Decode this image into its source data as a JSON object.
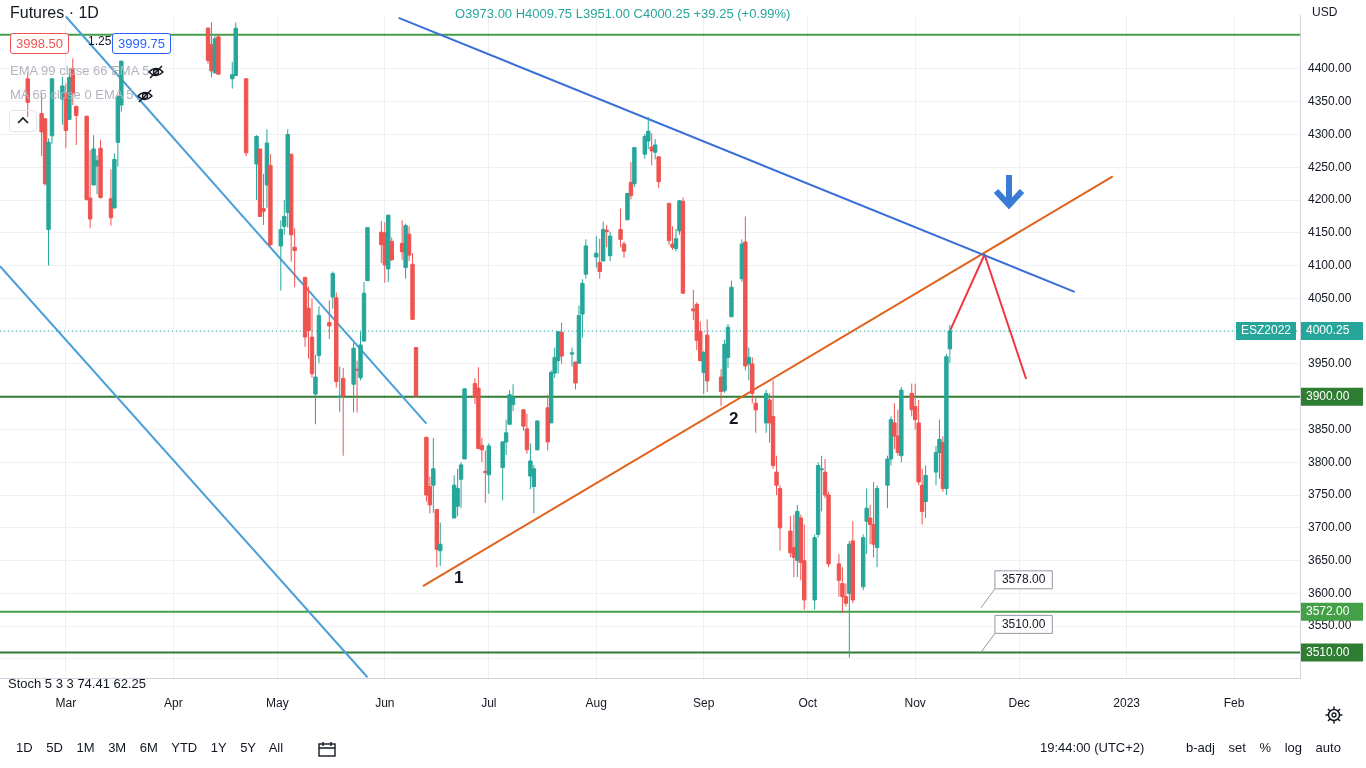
{
  "chart_data": {
    "type": "candlestick",
    "title": "Futures · 1D",
    "annotations": [
      "O3973.00 H4009.75 L3951.00 C4000.25 +39.25 (+0.99%)",
      "3998.50",
      "1.25",
      "3999.75",
      "EMA 99 close 66 EMA 5",
      "MA 65 close 0 EMA 5",
      "Stoch 5 3 3 74.41 62.25",
      "USD",
      "1D 5D 1M 3M 6M YTD 1Y 5Y All",
      "19:44:00 (UTC+2)",
      "b-adj set % log auto",
      "1",
      "2",
      {
        "text": "3578.00",
        "x": "2022-11-24",
        "y": 3578
      },
      {
        "text": "3510.00",
        "x": "2022-11-24",
        "y": 3510
      },
      {
        "text": "ESZ2022",
        "y": 4000.25
      }
    ],
    "x": [
      "2022-02-18",
      "2022-02-22",
      "2022-02-23",
      "2022-02-24",
      "2022-02-25",
      "2022-02-28",
      "2022-03-01",
      "2022-03-02",
      "2022-03-03",
      "2022-03-04",
      "2022-03-07",
      "2022-03-08",
      "2022-03-09",
      "2022-03-10",
      "2022-03-11",
      "2022-03-14",
      "2022-03-15",
      "2022-03-16",
      "2022-03-17",
      "2022-04-11",
      "2022-04-12",
      "2022-04-13",
      "2022-04-14",
      "2022-04-18",
      "2022-04-19",
      "2022-04-22",
      "2022-04-25",
      "2022-04-26",
      "2022-04-27",
      "2022-04-28",
      "2022-04-29",
      "2022-05-02",
      "2022-05-03",
      "2022-05-04",
      "2022-05-05",
      "2022-05-06",
      "2022-05-09",
      "2022-05-10",
      "2022-05-11",
      "2022-05-12",
      "2022-05-13",
      "2022-05-16",
      "2022-05-17",
      "2022-05-18",
      "2022-05-19",
      "2022-05-20",
      "2022-05-23",
      "2022-05-24",
      "2022-05-25",
      "2022-05-26",
      "2022-05-27",
      "2022-05-31",
      "2022-06-01",
      "2022-06-02",
      "2022-06-03",
      "2022-06-06",
      "2022-06-07",
      "2022-06-08",
      "2022-06-09",
      "2022-06-10",
      "2022-06-13",
      "2022-06-14",
      "2022-06-15",
      "2022-06-16",
      "2022-06-17",
      "2022-06-21",
      "2022-06-22",
      "2022-06-23",
      "2022-06-24",
      "2022-06-27",
      "2022-06-28",
      "2022-06-29",
      "2022-06-30",
      "2022-07-01",
      "2022-07-05",
      "2022-07-06",
      "2022-07-07",
      "2022-07-08",
      "2022-07-11",
      "2022-07-12",
      "2022-07-13",
      "2022-07-14",
      "2022-07-15",
      "2022-07-18",
      "2022-07-19",
      "2022-07-20",
      "2022-07-21",
      "2022-07-22",
      "2022-07-25",
      "2022-07-26",
      "2022-07-27",
      "2022-07-28",
      "2022-07-29",
      "2022-08-01",
      "2022-08-02",
      "2022-08-03",
      "2022-08-04",
      "2022-08-05",
      "2022-08-08",
      "2022-08-09",
      "2022-08-10",
      "2022-08-11",
      "2022-08-12",
      "2022-08-15",
      "2022-08-16",
      "2022-08-17",
      "2022-08-18",
      "2022-08-19",
      "2022-08-22",
      "2022-08-23",
      "2022-08-24",
      "2022-08-25",
      "2022-08-26",
      "2022-08-29",
      "2022-08-30",
      "2022-08-31",
      "2022-09-01",
      "2022-09-02",
      "2022-09-06",
      "2022-09-07",
      "2022-09-08",
      "2022-09-09",
      "2022-09-12",
      "2022-09-13",
      "2022-09-14",
      "2022-09-15",
      "2022-09-16",
      "2022-09-19",
      "2022-09-20",
      "2022-09-21",
      "2022-09-22",
      "2022-09-23",
      "2022-09-26",
      "2022-09-27",
      "2022-09-28",
      "2022-09-29",
      "2022-09-30",
      "2022-10-03",
      "2022-10-04",
      "2022-10-05",
      "2022-10-06",
      "2022-10-07",
      "2022-10-10",
      "2022-10-11",
      "2022-10-12",
      "2022-10-13",
      "2022-10-14",
      "2022-10-17",
      "2022-10-18",
      "2022-10-19",
      "2022-10-20",
      "2022-10-21",
      "2022-10-24",
      "2022-10-25",
      "2022-10-26",
      "2022-10-27",
      "2022-10-28",
      "2022-10-31",
      "2022-11-01",
      "2022-11-02",
      "2022-11-03",
      "2022-11-04",
      "2022-11-07",
      "2022-11-08",
      "2022-11-09",
      "2022-11-10",
      "2022-11-11"
    ],
    "ohlc": [
      [
        4385,
        4395,
        4327,
        4349
      ],
      [
        4332,
        4362,
        4267,
        4304
      ],
      [
        4324,
        4325,
        4222,
        4225
      ],
      [
        4155,
        4294,
        4100,
        4288
      ],
      [
        4298,
        4385,
        4286,
        4385
      ],
      [
        4354,
        4388,
        4315,
        4374
      ],
      [
        4363,
        4378,
        4279,
        4306
      ],
      [
        4323,
        4401,
        4322,
        4387
      ],
      [
        4401,
        4416,
        4345,
        4363
      ],
      [
        4343,
        4343,
        4284,
        4329
      ],
      [
        4328,
        4328,
        4199,
        4201
      ],
      [
        4203,
        4276,
        4157,
        4171
      ],
      [
        4223,
        4299,
        4223,
        4278
      ],
      [
        4252,
        4268,
        4209,
        4260
      ],
      [
        4279,
        4292,
        4202,
        4204
      ],
      [
        4202,
        4247,
        4161,
        4173
      ],
      [
        4188,
        4271,
        4187,
        4262
      ],
      [
        4288,
        4358,
        4251,
        4358
      ],
      [
        4345,
        4412,
        4335,
        4412
      ],
      [
        4462,
        4464,
        4408,
        4413
      ],
      [
        4437,
        4471,
        4387,
        4397
      ],
      [
        4394,
        4453,
        4393,
        4446
      ],
      [
        4449,
        4452,
        4392,
        4392
      ],
      [
        4385,
        4411,
        4370,
        4391
      ],
      [
        4390,
        4471,
        4390,
        4462
      ],
      [
        4385,
        4385,
        4267,
        4272
      ],
      [
        4255,
        4299,
        4200,
        4297
      ],
      [
        4278,
        4278,
        4175,
        4175
      ],
      [
        4187,
        4240,
        4162,
        4183
      ],
      [
        4223,
        4308,
        4188,
        4287
      ],
      [
        4253,
        4270,
        4129,
        4132
      ],
      [
        4130,
        4169,
        4062,
        4155
      ],
      [
        4160,
        4200,
        4147,
        4175
      ],
      [
        4181,
        4308,
        4158,
        4300
      ],
      [
        4270,
        4270,
        4106,
        4147
      ],
      [
        4128,
        4157,
        4067,
        4123
      ],
      [
        4082,
        4082,
        3976,
        3991
      ],
      [
        4035,
        4068,
        3958,
        4001
      ],
      [
        3991,
        4050,
        3929,
        3935
      ],
      [
        3904,
        3964,
        3858,
        3930
      ],
      [
        3963,
        4038,
        3951,
        4024
      ],
      [
        4013,
        4047,
        3988,
        4008
      ],
      [
        4052,
        4091,
        4034,
        4088
      ],
      [
        4051,
        4059,
        3914,
        3923
      ],
      [
        3900,
        3946,
        3877,
        3901
      ],
      [
        3928,
        3944,
        3810,
        3901
      ],
      [
        3919,
        3982,
        3876,
        3974
      ],
      [
        3942,
        3955,
        3876,
        3941
      ],
      [
        3929,
        3999,
        3925,
        3979
      ],
      [
        3985,
        4075,
        3984,
        4058
      ],
      [
        4077,
        4158,
        4077,
        4158
      ],
      [
        4151,
        4168,
        4104,
        4132
      ],
      [
        4150,
        4166,
        4074,
        4101
      ],
      [
        4095,
        4177,
        4075,
        4177
      ],
      [
        4137,
        4143,
        4107,
        4109
      ],
      [
        4134,
        4169,
        4109,
        4121
      ],
      [
        4097,
        4164,
        4080,
        4161
      ],
      [
        4148,
        4160,
        4107,
        4116
      ],
      [
        4102,
        4119,
        4017,
        4018
      ],
      [
        3975,
        3975,
        3900,
        3901
      ],
      [
        3838,
        3839,
        3740,
        3750
      ],
      [
        3763,
        3778,
        3722,
        3735
      ],
      [
        3765,
        3837,
        3723,
        3790
      ],
      [
        3728,
        3728,
        3640,
        3667
      ],
      [
        3665,
        3708,
        3642,
        3675
      ],
      [
        3715,
        3780,
        3715,
        3765
      ],
      [
        3733,
        3790,
        3718,
        3760
      ],
      [
        3774,
        3800,
        3730,
        3796
      ],
      [
        3805,
        3913,
        3805,
        3912
      ],
      [
        3920,
        3928,
        3889,
        3900
      ],
      [
        3913,
        3945,
        3820,
        3821
      ],
      [
        3826,
        3837,
        3800,
        3819
      ],
      [
        3786,
        3818,
        3738,
        3785
      ],
      [
        3781,
        3829,
        3752,
        3825
      ],
      [
        3792,
        3832,
        3742,
        3831
      ],
      [
        3831,
        3865,
        3811,
        3845
      ],
      [
        3858,
        3910,
        3858,
        3903
      ],
      [
        3888,
        3919,
        3878,
        3899
      ],
      [
        3880,
        3880,
        3848,
        3855
      ],
      [
        3851,
        3874,
        3813,
        3819
      ],
      [
        3779,
        3829,
        3759,
        3802
      ],
      [
        3763,
        3796,
        3722,
        3790
      ],
      [
        3819,
        3864,
        3818,
        3863
      ],
      [
        3883,
        3903,
        3818,
        3831
      ],
      [
        3860,
        3940,
        3860,
        3937
      ],
      [
        3936,
        3975,
        3929,
        3960
      ],
      [
        3955,
        4000,
        3935,
        3999
      ],
      [
        3998,
        4013,
        3950,
        3962
      ],
      [
        3965,
        3975,
        3946,
        3967
      ],
      [
        3953,
        3953,
        3911,
        3921
      ],
      [
        3951,
        4039,
        3951,
        4024
      ],
      [
        4026,
        4079,
        3990,
        4073
      ],
      [
        4087,
        4140,
        4080,
        4130
      ],
      [
        4113,
        4145,
        4097,
        4119
      ],
      [
        4105,
        4141,
        4080,
        4091
      ],
      [
        4107,
        4167,
        4107,
        4155
      ],
      [
        4154,
        4162,
        4128,
        4152
      ],
      [
        4115,
        4152,
        4107,
        4145
      ],
      [
        4155,
        4187,
        4128,
        4140
      ],
      [
        4133,
        4137,
        4112,
        4122
      ],
      [
        4170,
        4211,
        4169,
        4210
      ],
      [
        4227,
        4258,
        4201,
        4207
      ],
      [
        4225,
        4280,
        4220,
        4280
      ],
      [
        4270,
        4301,
        4263,
        4297
      ],
      [
        4290,
        4327,
        4278,
        4305
      ],
      [
        4281,
        4302,
        4253,
        4275
      ],
      [
        4273,
        4293,
        4262,
        4284
      ],
      [
        4266,
        4266,
        4218,
        4228
      ],
      [
        4195,
        4195,
        4132,
        4138
      ],
      [
        4133,
        4160,
        4124,
        4128
      ],
      [
        4126,
        4156,
        4122,
        4141
      ],
      [
        4153,
        4200,
        4147,
        4199
      ],
      [
        4198,
        4204,
        4057,
        4058
      ],
      [
        4034,
        4063,
        4017,
        4031
      ],
      [
        4041,
        4044,
        3971,
        3986
      ],
      [
        4000,
        4015,
        3954,
        3955
      ],
      [
        3937,
        3970,
        3904,
        3967
      ],
      [
        3994,
        4018,
        3907,
        3924
      ],
      [
        3930,
        3942,
        3886,
        3908
      ],
      [
        3909,
        3987,
        3906,
        3980
      ],
      [
        3960,
        4011,
        3944,
        4006
      ],
      [
        4022,
        4077,
        4022,
        4067
      ],
      [
        4080,
        4140,
        4075,
        4133
      ],
      [
        4136,
        4175,
        3940,
        3947
      ],
      [
        3950,
        3975,
        3925,
        3960
      ],
      [
        3950,
        3960,
        3890,
        3905
      ],
      [
        3890,
        3900,
        3845,
        3880
      ],
      [
        3860,
        3910,
        3845,
        3905
      ],
      [
        3895,
        3905,
        3830,
        3860
      ],
      [
        3870,
        3925,
        3790,
        3795
      ],
      [
        3785,
        3810,
        3750,
        3765
      ],
      [
        3760,
        3765,
        3665,
        3700
      ],
      [
        3695,
        3718,
        3655,
        3662
      ],
      [
        3670,
        3720,
        3625,
        3655
      ],
      [
        3650,
        3735,
        3625,
        3725
      ],
      [
        3715,
        3720,
        3620,
        3647
      ],
      [
        3650,
        3705,
        3575,
        3590
      ],
      [
        3590,
        3690,
        3575,
        3685
      ],
      [
        3690,
        3800,
        3685,
        3795
      ],
      [
        3790,
        3810,
        3725,
        3790
      ],
      [
        3785,
        3805,
        3745,
        3750
      ],
      [
        3750,
        3755,
        3640,
        3645
      ],
      [
        3645,
        3660,
        3595,
        3620
      ],
      [
        3615,
        3640,
        3570,
        3595
      ],
      [
        3595,
        3615,
        3580,
        3585
      ],
      [
        3600,
        3680,
        3502,
        3675
      ],
      [
        3680,
        3710,
        3585,
        3590
      ],
      [
        3610,
        3690,
        3605,
        3685
      ],
      [
        3710,
        3760,
        3660,
        3730
      ],
      [
        3715,
        3735,
        3675,
        3705
      ],
      [
        3705,
        3770,
        3655,
        3675
      ],
      [
        3670,
        3765,
        3640,
        3760
      ],
      [
        3765,
        3810,
        3730,
        3805
      ],
      [
        3805,
        3870,
        3795,
        3865
      ],
      [
        3860,
        3890,
        3820,
        3840
      ],
      [
        3840,
        3880,
        3810,
        3815
      ],
      [
        3810,
        3915,
        3800,
        3910
      ],
      [
        3905,
        3920,
        3870,
        3880
      ],
      [
        3885,
        3920,
        3850,
        3865
      ],
      [
        3860,
        3895,
        3765,
        3770
      ],
      [
        3765,
        3790,
        3705,
        3725
      ],
      [
        3740,
        3795,
        3715,
        3780
      ],
      [
        3785,
        3825,
        3765,
        3815
      ],
      [
        3815,
        3865,
        3775,
        3835
      ],
      [
        3830,
        3840,
        3755,
        3760
      ],
      [
        3760,
        3965,
        3750,
        3961
      ],
      [
        3973.0,
        4009.75,
        3951.0,
        4000.25
      ]
    ],
    "series": [
      {
        "type": "line",
        "color": "#3a6fd8",
        "x": [
          "2022-06-05",
          "2022-12-17"
        ],
        "values": [
          4478,
          4060
        ]
      },
      {
        "type": "line",
        "color": "#e0611a",
        "x": [
          "2022-06-12",
          "2022-12-28"
        ],
        "values": [
          3611,
          4236
        ]
      },
      {
        "type": "line",
        "color": "#4a9fd8",
        "x": [
          "2022-03-01",
          "2022-06-13"
        ],
        "values": [
          4480,
          3859
        ]
      },
      {
        "type": "line",
        "color": "#4a9fd8",
        "x": [
          "2022-02-10",
          "2022-05-27"
        ],
        "values": [
          4099,
          3472
        ]
      },
      {
        "type": "line",
        "color": "#f23645",
        "x": [
          "2022-11-11",
          "2022-11-21",
          "2022-12-03"
        ],
        "values": [
          4000,
          4117,
          3927
        ]
      }
    ],
    "ref_lines": [
      {
        "axis": "y",
        "value": 4452,
        "label": null,
        "color": "#43a047"
      },
      {
        "axis": "y",
        "value": 4000.25,
        "label": "4000.25",
        "color": "#26a69a",
        "line_style": "dotted"
      },
      {
        "axis": "y",
        "value": 3900,
        "label": "3900.00",
        "color": "#2e7d32"
      },
      {
        "axis": "y",
        "value": 3572,
        "label": "3572.00",
        "color": "#43a047"
      },
      {
        "axis": "y",
        "value": 3510,
        "label": "3510.00",
        "color": "#2e7d32"
      }
    ],
    "xlim": [
      "2022-02-10",
      "2023-02-20"
    ],
    "xticks": [
      {
        "value": "2022-03-01",
        "label": "Mar"
      },
      {
        "value": "2022-04-01",
        "label": "Apr"
      },
      {
        "value": "2022-05-01",
        "label": "May"
      },
      {
        "value": "2022-06-01",
        "label": "Jun"
      },
      {
        "value": "2022-07-01",
        "label": "Jul"
      },
      {
        "value": "2022-08-01",
        "label": "Aug"
      },
      {
        "value": "2022-09-01",
        "label": "Sep"
      },
      {
        "value": "2022-10-01",
        "label": "Oct"
      },
      {
        "value": "2022-11-01",
        "label": "Nov"
      },
      {
        "value": "2022-12-01",
        "label": "Dec"
      },
      {
        "value": "2023-01-01",
        "label": "2023"
      },
      {
        "value": "2023-02-01",
        "label": "Feb"
      }
    ],
    "ylim": [
      3470,
      4482
    ],
    "yticks": [
      {
        "value": 3500,
        "label": null
      },
      {
        "value": 3550,
        "label": "3550.00"
      },
      {
        "value": 3600,
        "label": "3600.00"
      },
      {
        "value": 3650,
        "label": "3650.00"
      },
      {
        "value": 3700,
        "label": "3700.00"
      },
      {
        "value": 3750,
        "label": "3750.00"
      },
      {
        "value": 3800,
        "label": "3800.00"
      },
      {
        "value": 3850,
        "label": "3850.00"
      },
      {
        "value": 3900,
        "label": "3900.00"
      },
      {
        "value": 3950,
        "label": "3950.00"
      },
      {
        "value": 4000,
        "label": null
      },
      {
        "value": 4050,
        "label": "4050.00"
      },
      {
        "value": 4100,
        "label": "4100.00"
      },
      {
        "value": 4150,
        "label": "4150.00"
      },
      {
        "value": 4200,
        "label": "4200.00"
      },
      {
        "value": 4250,
        "label": "4250.00"
      },
      {
        "value": 4300,
        "label": "4300.00"
      },
      {
        "value": 4350,
        "label": "4350.00"
      },
      {
        "value": 4400,
        "label": "4400.00"
      }
    ],
    "grid": true,
    "legend": false
  }
}
